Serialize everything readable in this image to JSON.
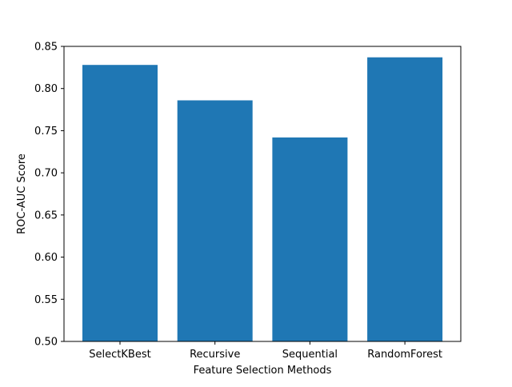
{
  "chart_data": {
    "type": "bar",
    "title": "",
    "xlabel": "Feature Selection Methods",
    "ylabel": "ROC-AUC Score",
    "categories": [
      "SelectKBest",
      "Recursive",
      "Sequential",
      "RandomForest"
    ],
    "values": [
      0.828,
      0.786,
      0.742,
      0.837
    ],
    "ylim": [
      0.5,
      0.85
    ],
    "yticks": [
      0.5,
      0.55,
      0.6,
      0.65,
      0.7,
      0.75,
      0.8,
      0.85
    ],
    "ytick_labels": [
      "0.50",
      "0.55",
      "0.60",
      "0.65",
      "0.70",
      "0.75",
      "0.80",
      "0.85"
    ],
    "bar_color": "#1f77b4",
    "grid": false,
    "legend": "none"
  }
}
